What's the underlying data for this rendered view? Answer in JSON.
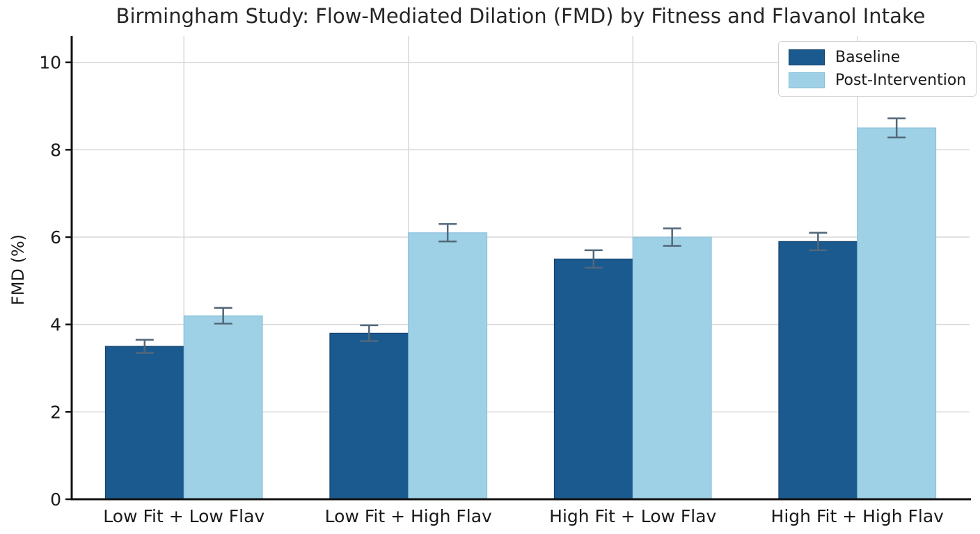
{
  "title": "Birmingham Study: Flow-Mediated Dilation (FMD) by Fitness and Flavanol Intake",
  "chart_data": {
    "type": "bar",
    "categories": [
      "Low Fit + Low Flav",
      "Low Fit + High Flav",
      "High Fit + Low Flav",
      "High Fit + High Flav"
    ],
    "series": [
      {
        "name": "Baseline",
        "color": "#1a5a8f",
        "edge_color": "#123f66",
        "values": [
          3.5,
          3.8,
          5.5,
          5.9
        ],
        "errors": [
          0.15,
          0.18,
          0.2,
          0.2
        ]
      },
      {
        "name": "Post-Intervention",
        "color": "#9ed0e6",
        "edge_color": "#86c0da",
        "values": [
          4.2,
          6.1,
          6.0,
          8.5
        ],
        "errors": [
          0.18,
          0.2,
          0.2,
          0.22
        ]
      }
    ],
    "ylabel": "FMD (%)",
    "yticks": [
      0,
      2,
      4,
      6,
      8,
      10
    ],
    "ylim": [
      0,
      10.6
    ],
    "grid": true,
    "legend_position": "upper right",
    "error_bar_color": "#52677a",
    "grid_color": "#d9d9d9",
    "axis_color": "#111111",
    "text_color": "#1a1a1a"
  }
}
